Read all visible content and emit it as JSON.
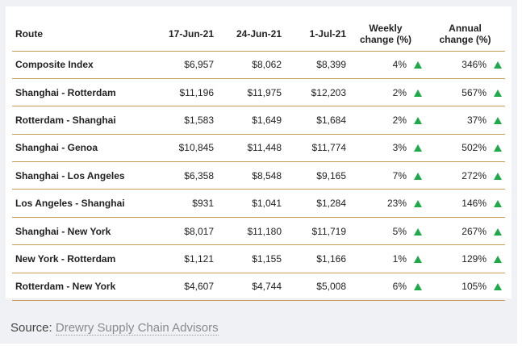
{
  "table": {
    "headers": {
      "route": "Route",
      "d1": "17-Jun-21",
      "d2": "24-Jun-21",
      "d3": "1-Jul-21",
      "weekly_l1": "Weekly",
      "weekly_l2": "change (%)",
      "annual_l1": "Annual",
      "annual_l2": "change (%)"
    },
    "rows": [
      {
        "route": "Composite Index",
        "d1": "$6,957",
        "d2": "$8,062",
        "d3": "$8,399",
        "weekly": "4%",
        "annual": "346%"
      },
      {
        "route": "Shanghai - Rotterdam",
        "d1": "$11,196",
        "d2": "$11,975",
        "d3": "$12,203",
        "weekly": "2%",
        "annual": "567%"
      },
      {
        "route": "Rotterdam - Shanghai",
        "d1": "$1,583",
        "d2": "$1,649",
        "d3": "$1,684",
        "weekly": "2%",
        "annual": "37%"
      },
      {
        "route": "Shanghai - Genoa",
        "d1": "$10,845",
        "d2": "$11,448",
        "d3": "$11,774",
        "weekly": "3%",
        "annual": "502%"
      },
      {
        "route": "Shanghai - Los Angeles",
        "d1": "$6,358",
        "d2": "$8,548",
        "d3": "$9,165",
        "weekly": "7%",
        "annual": "272%"
      },
      {
        "route": "Los Angeles - Shanghai",
        "d1": "$931",
        "d2": "$1,041",
        "d3": "$1,284",
        "weekly": "23%",
        "annual": "146%"
      },
      {
        "route": "Shanghai - New York",
        "d1": "$8,017",
        "d2": "$11,180",
        "d3": "$11,719",
        "weekly": "5%",
        "annual": "267%"
      },
      {
        "route": "New York - Rotterdam",
        "d1": "$1,121",
        "d2": "$1,155",
        "d3": "$1,166",
        "weekly": "1%",
        "annual": "129%"
      },
      {
        "route": "Rotterdam - New York",
        "d1": "$4,607",
        "d2": "$4,744",
        "d3": "$5,008",
        "weekly": "6%",
        "annual": "105%"
      }
    ],
    "arrow_icon": "triangle-up-icon",
    "arrow_color": "#1faa4a",
    "border_color": "#c99a52"
  },
  "source": {
    "prefix": "Source: ",
    "link_text": "Drewry Supply Chain Advisors"
  }
}
